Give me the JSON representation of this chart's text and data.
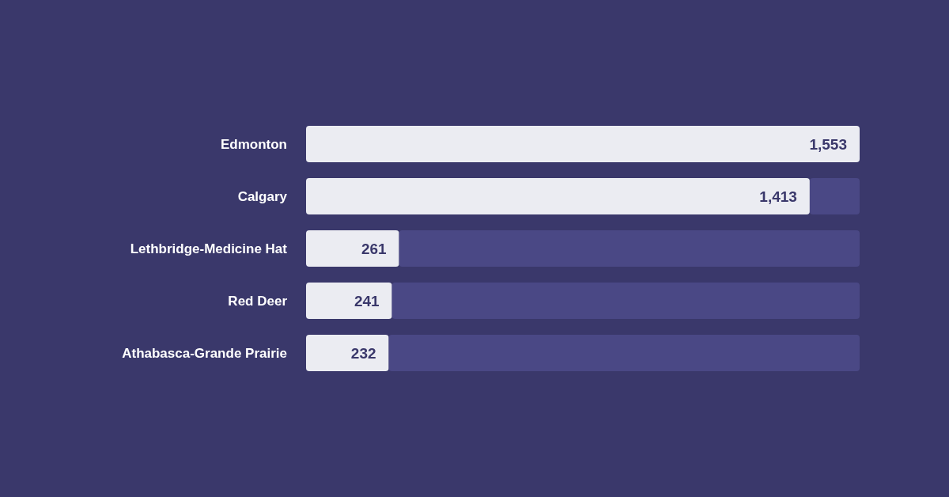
{
  "chart_data": {
    "type": "bar",
    "orientation": "horizontal",
    "stacked": true,
    "categories": [
      "Edmonton",
      "Calgary",
      "Lethbridge-Medicine Hat",
      "Red Deer",
      "Athabasca-Grande Prairie"
    ],
    "series": [
      {
        "color": "#ebecf2",
        "values": [
          1553,
          1413,
          261,
          241,
          232
        ],
        "value_labels": [
          "1,553",
          "1,413",
          "261",
          "241",
          "232"
        ]
      },
      {
        "color": "#4a4885",
        "values": [
          0,
          140,
          1292,
          1312,
          1321
        ],
        "value_labels": [
          null,
          null,
          null,
          null,
          null
        ]
      }
    ]
  }
}
